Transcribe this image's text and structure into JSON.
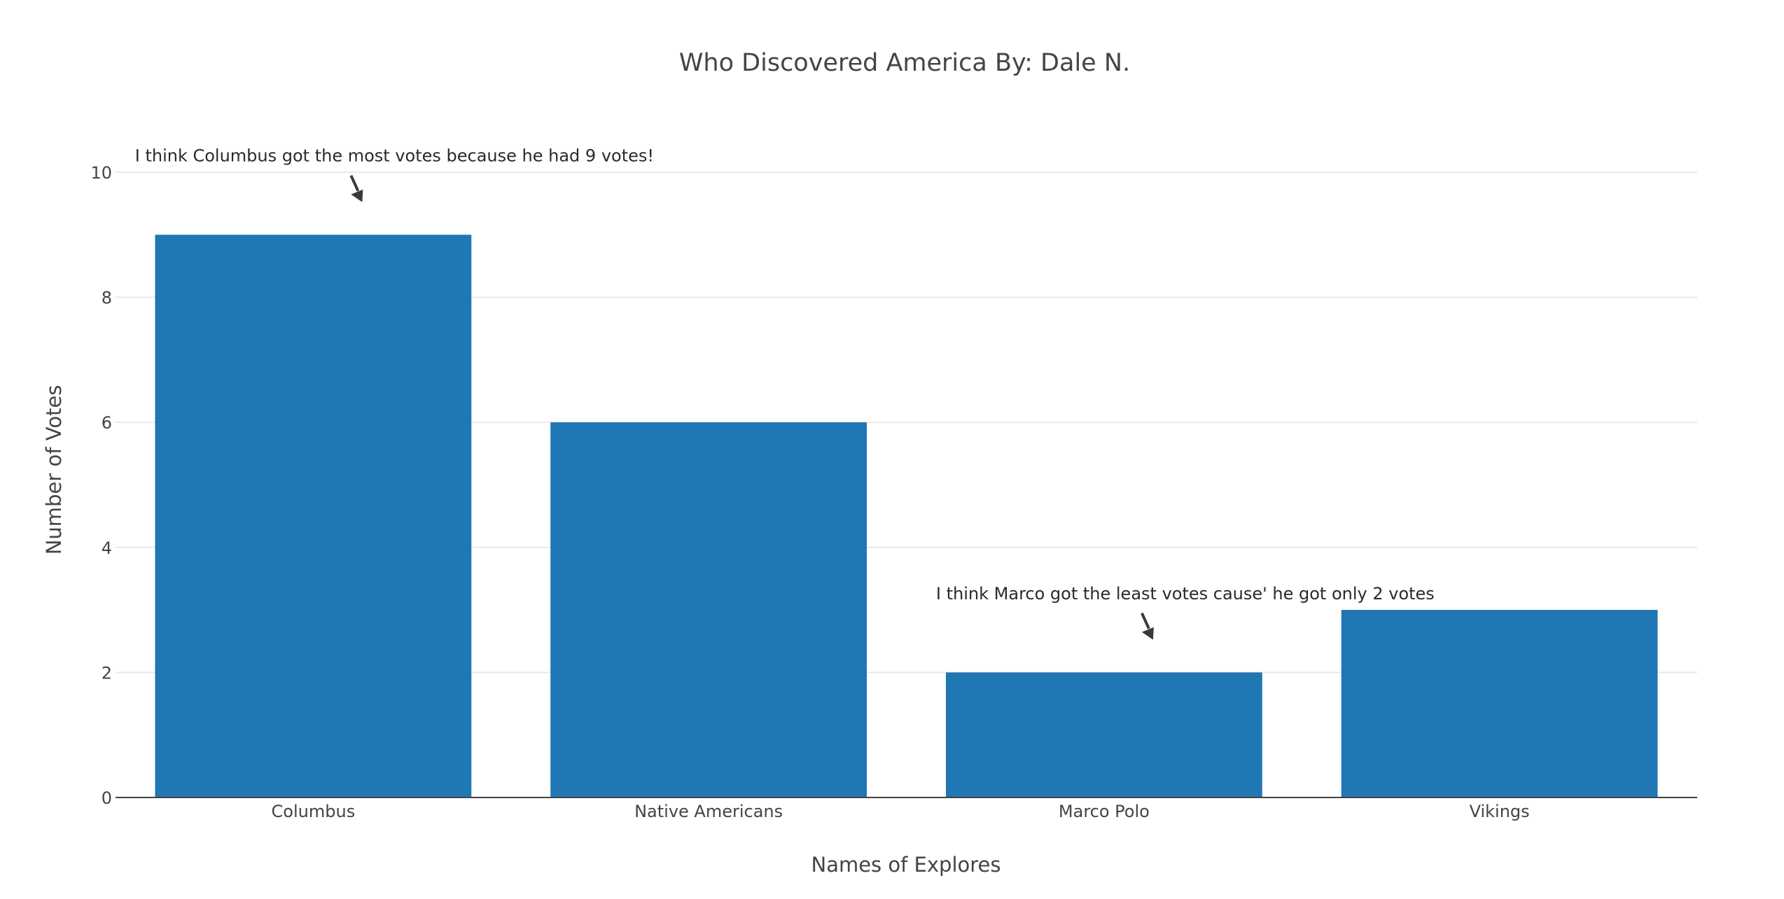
{
  "chart_data": {
    "type": "bar",
    "title": "Who Discovered America By: Dale N.",
    "xlabel": "Names of Explores",
    "ylabel": "Number of Votes",
    "categories": [
      "Columbus",
      "Native Americans",
      "Marco Polo",
      "Vikings"
    ],
    "values": [
      9,
      6,
      2,
      3
    ],
    "ylim": [
      0,
      10
    ],
    "yticks": [
      "0",
      "2",
      "4",
      "6",
      "8",
      "10"
    ],
    "grid": true,
    "bar_color": "#1f77b4",
    "annotations": [
      {
        "text": "I think Columbus got the most votes because he had 9 votes!",
        "category": "Columbus",
        "value": 9.5
      },
      {
        "text": "I think Marco got the least votes cause' he got only 2 votes",
        "category": "Marco Polo",
        "value": 2.5
      }
    ]
  }
}
